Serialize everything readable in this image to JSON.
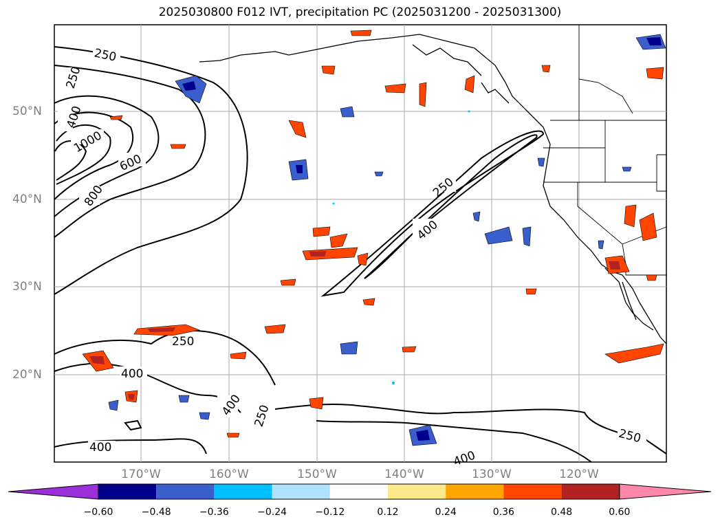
{
  "title": "2025030800 F012 IVT, precipitation PC (2025031200 - 2025031300)",
  "lat_labels": [
    "50°N",
    "40°N",
    "30°N",
    "20°N"
  ],
  "lon_labels": [
    "170°W",
    "160°W",
    "150°W",
    "140°W",
    "130°W",
    "120°W"
  ],
  "contour_labels": {
    "c250a": "250",
    "c250b": "250",
    "c400a": "400",
    "c1000": "1000",
    "c600": "600",
    "c800": "800",
    "c250c": "250",
    "c400b": "400",
    "c250d": "250",
    "c400c": "400",
    "c400d": "400",
    "c250e": "250",
    "c400e": "400",
    "c250f": "250",
    "c400f": "400"
  },
  "colorbar": {
    "ticks": [
      "−0.60",
      "−0.48",
      "−0.36",
      "−0.24",
      "−0.12",
      "0.12",
      "0.24",
      "0.36",
      "0.48",
      "0.60"
    ],
    "colors": [
      "#9b30d9",
      "#00008b",
      "#3a5fcd",
      "#00bfff",
      "#b0e2ff",
      "#ffffff",
      "#fde98b",
      "#ffa500",
      "#ff4500",
      "#b22222",
      "#ff88aa"
    ]
  }
}
